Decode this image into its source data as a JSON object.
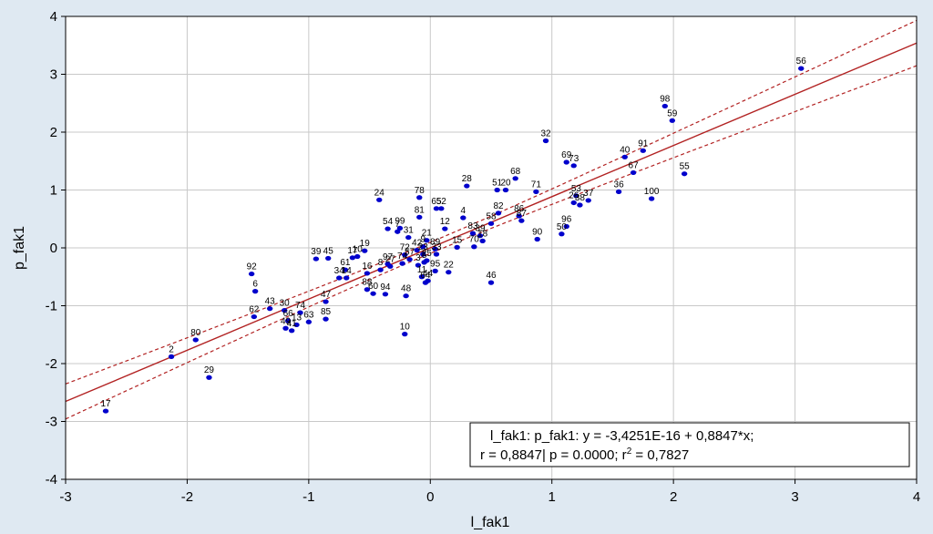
{
  "chart_data": {
    "type": "scatter",
    "title": "",
    "xlabel": "l_fak1",
    "ylabel": "p_fak1",
    "xlim": [
      -3,
      4
    ],
    "ylim": [
      -4,
      4
    ],
    "x_ticks": [
      -3,
      -2,
      -1,
      0,
      1,
      2,
      3,
      4
    ],
    "y_ticks": [
      -4,
      -3,
      -2,
      -1,
      0,
      1,
      2,
      3,
      4
    ],
    "x_tick_labels": [
      "-3",
      "-2",
      "-1",
      "0",
      "1",
      "2",
      "3",
      "4"
    ],
    "y_tick_labels": [
      "-4",
      "-3",
      "-2",
      "-1",
      "0",
      "1",
      "2",
      "3",
      "4"
    ],
    "grid": true,
    "colors": {
      "points": "#0000cc",
      "fit_line": "#b22222",
      "confidence": "#b22222",
      "background": "#dfe9f2",
      "plot_area": "#ffffff",
      "grid": "#c8c8c8"
    },
    "regression": {
      "intercept": 0,
      "slope": 0.8847,
      "line1": "l_fak1:  p_fak1:   y = -3,4251E-16 + 0,8847*x;",
      "line2_a": "r = 0,8847| p = 0.0000; r",
      "line2_sup": "2",
      "line2_b": " = 0,7827"
    },
    "points": [
      {
        "label": "56",
        "x": 3.05,
        "y": 3.1
      },
      {
        "label": "98",
        "x": 1.93,
        "y": 2.45
      },
      {
        "label": "59",
        "x": 1.99,
        "y": 2.2
      },
      {
        "label": "32",
        "x": 0.95,
        "y": 1.85
      },
      {
        "label": "91",
        "x": 1.75,
        "y": 1.68
      },
      {
        "label": "40",
        "x": 1.6,
        "y": 1.57
      },
      {
        "label": "69",
        "x": 1.12,
        "y": 1.48
      },
      {
        "label": "73",
        "x": 1.18,
        "y": 1.42
      },
      {
        "label": "67",
        "x": 1.67,
        "y": 1.3
      },
      {
        "label": "55",
        "x": 2.09,
        "y": 1.28
      },
      {
        "label": "68",
        "x": 0.7,
        "y": 1.2
      },
      {
        "label": "28",
        "x": 0.3,
        "y": 1.07
      },
      {
        "label": "51",
        "x": 0.55,
        "y": 1.0
      },
      {
        "label": "20",
        "x": 0.62,
        "y": 1.0
      },
      {
        "label": "71",
        "x": 0.87,
        "y": 0.97
      },
      {
        "label": "36",
        "x": 1.55,
        "y": 0.97
      },
      {
        "label": "100",
        "x": 1.82,
        "y": 0.85
      },
      {
        "label": "53",
        "x": 1.2,
        "y": 0.9
      },
      {
        "label": "26",
        "x": 1.18,
        "y": 0.78
      },
      {
        "label": "38",
        "x": 1.23,
        "y": 0.74
      },
      {
        "label": "37",
        "x": 1.3,
        "y": 0.82
      },
      {
        "label": "24",
        "x": -0.42,
        "y": 0.83
      },
      {
        "label": "78",
        "x": -0.09,
        "y": 0.87
      },
      {
        "label": "65",
        "x": 0.05,
        "y": 0.68
      },
      {
        "label": "52",
        "x": 0.09,
        "y": 0.68
      },
      {
        "label": "81",
        "x": -0.09,
        "y": 0.53
      },
      {
        "label": "4",
        "x": 0.27,
        "y": 0.52
      },
      {
        "label": "86",
        "x": 0.73,
        "y": 0.55
      },
      {
        "label": "82",
        "x": 0.56,
        "y": 0.6
      },
      {
        "label": "58",
        "x": 0.5,
        "y": 0.42
      },
      {
        "label": "87",
        "x": 0.75,
        "y": 0.47
      },
      {
        "label": "96",
        "x": 1.12,
        "y": 0.37
      },
      {
        "label": "50",
        "x": 1.08,
        "y": 0.24
      },
      {
        "label": "90",
        "x": 0.88,
        "y": 0.15
      },
      {
        "label": "54",
        "x": -0.35,
        "y": 0.33
      },
      {
        "label": "99",
        "x": -0.25,
        "y": 0.34
      },
      {
        "label": "7",
        "x": -0.27,
        "y": 0.28
      },
      {
        "label": "31",
        "x": -0.18,
        "y": 0.18
      },
      {
        "label": "12",
        "x": 0.12,
        "y": 0.33
      },
      {
        "label": "21",
        "x": -0.03,
        "y": 0.13
      },
      {
        "label": "83",
        "x": 0.35,
        "y": 0.25
      },
      {
        "label": "39",
        "x": 0.41,
        "y": 0.21
      },
      {
        "label": "18",
        "x": 0.43,
        "y": 0.12
      },
      {
        "label": "70",
        "x": 0.36,
        "y": 0.02
      },
      {
        "label": "15",
        "x": 0.22,
        "y": 0.01
      },
      {
        "label": "9",
        "x": -0.06,
        "y": 0.02
      },
      {
        "label": "42",
        "x": -0.11,
        "y": -0.04
      },
      {
        "label": "89",
        "x": 0.04,
        "y": -0.02
      },
      {
        "label": "33",
        "x": 0.05,
        "y": -0.11
      },
      {
        "label": "23",
        "x": -0.06,
        "y": -0.11
      },
      {
        "label": "25",
        "x": -0.03,
        "y": -0.22
      },
      {
        "label": "72",
        "x": -0.21,
        "y": -0.12
      },
      {
        "label": "57",
        "x": -0.17,
        "y": -0.2
      },
      {
        "label": "74",
        "x": -0.23,
        "y": -0.27
      },
      {
        "label": "3",
        "x": -0.1,
        "y": -0.3
      },
      {
        "label": "5",
        "x": -0.05,
        "y": -0.25
      },
      {
        "label": "95",
        "x": 0.04,
        "y": -0.4
      },
      {
        "label": "22",
        "x": 0.15,
        "y": -0.42
      },
      {
        "label": "11",
        "x": -0.07,
        "y": -0.5
      },
      {
        "label": "64",
        "x": -0.04,
        "y": -0.6
      },
      {
        "label": "44",
        "x": -0.02,
        "y": -0.57
      },
      {
        "label": "97",
        "x": -0.35,
        "y": -0.28
      },
      {
        "label": "27",
        "x": -0.33,
        "y": -0.32
      },
      {
        "label": "8",
        "x": -0.41,
        "y": -0.38
      },
      {
        "label": "19",
        "x": -0.54,
        "y": -0.05
      },
      {
        "label": "10",
        "x": -0.6,
        "y": -0.15
      },
      {
        "label": "17",
        "x": -0.64,
        "y": -0.17
      },
      {
        "label": "39",
        "x": -0.94,
        "y": -0.19
      },
      {
        "label": "45",
        "x": -0.84,
        "y": -0.18
      },
      {
        "label": "61",
        "x": -0.7,
        "y": -0.38
      },
      {
        "label": "16",
        "x": -0.52,
        "y": -0.44
      },
      {
        "label": "34",
        "x": -0.75,
        "y": -0.52
      },
      {
        "label": "14",
        "x": -0.69,
        "y": -0.52
      },
      {
        "label": "88",
        "x": -0.52,
        "y": -0.72
      },
      {
        "label": "60",
        "x": -0.47,
        "y": -0.79
      },
      {
        "label": "94",
        "x": -0.37,
        "y": -0.8
      },
      {
        "label": "48",
        "x": -0.2,
        "y": -0.83
      },
      {
        "label": "46",
        "x": 0.5,
        "y": -0.6
      },
      {
        "label": "47",
        "x": -0.86,
        "y": -0.93
      },
      {
        "label": "85",
        "x": -0.86,
        "y": -1.23
      },
      {
        "label": "30",
        "x": -1.2,
        "y": -1.08
      },
      {
        "label": "74",
        "x": -1.07,
        "y": -1.12
      },
      {
        "label": "62",
        "x": -1.45,
        "y": -1.19
      },
      {
        "label": "43",
        "x": -1.32,
        "y": -1.05
      },
      {
        "label": "63",
        "x": -1.0,
        "y": -1.28
      },
      {
        "label": "66",
        "x": -1.17,
        "y": -1.26
      },
      {
        "label": "13",
        "x": -1.1,
        "y": -1.33
      },
      {
        "label": "41",
        "x": -1.14,
        "y": -1.43
      },
      {
        "label": "49",
        "x": -1.19,
        "y": -1.39
      },
      {
        "label": "6",
        "x": -1.44,
        "y": -0.75
      },
      {
        "label": "92",
        "x": -1.47,
        "y": -0.45
      },
      {
        "label": "80",
        "x": -1.93,
        "y": -1.59
      },
      {
        "label": "2",
        "x": -2.13,
        "y": -1.88
      },
      {
        "label": "29",
        "x": -1.82,
        "y": -2.24
      },
      {
        "label": "17",
        "x": -2.67,
        "y": -2.82
      },
      {
        "label": "10",
        "x": -0.21,
        "y": -1.49
      }
    ]
  }
}
